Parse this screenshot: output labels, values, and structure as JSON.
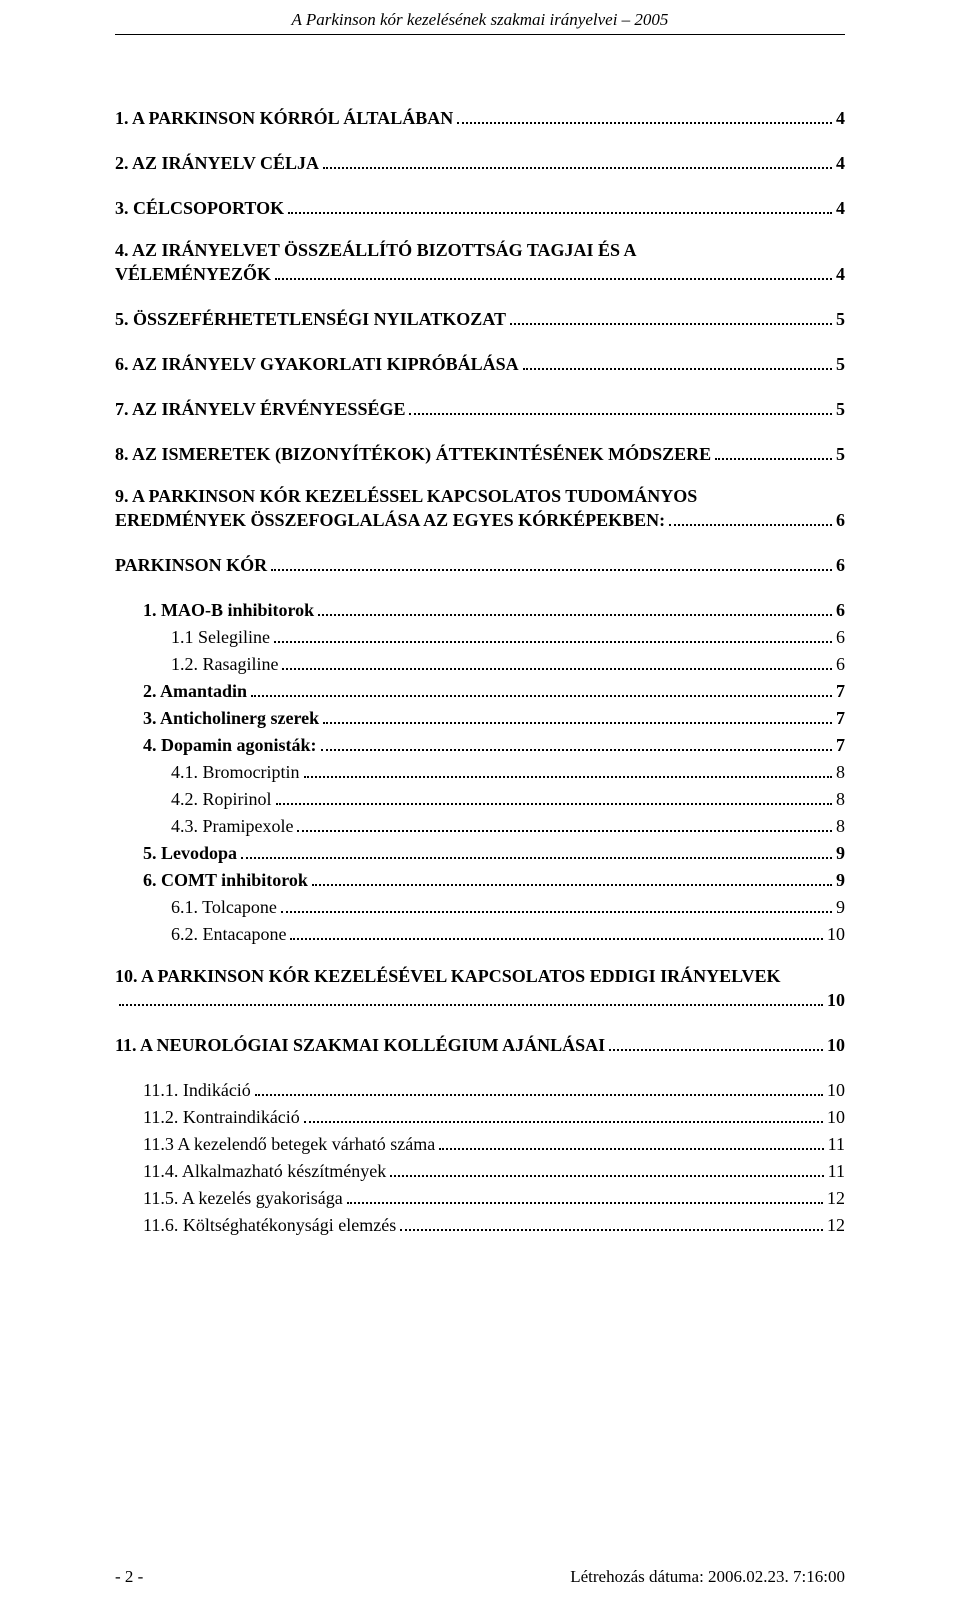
{
  "header": {
    "title": "A Parkinson kór  kezelésének szakmai irányelvei – 2005"
  },
  "toc": [
    {
      "type": "entry",
      "bold": true,
      "indent": 0,
      "label": "1. A PARKINSON KÓRRÓL ÁLTALÁBAN",
      "page": "4"
    },
    {
      "type": "spacer"
    },
    {
      "type": "entry",
      "bold": true,
      "indent": 0,
      "label": "2. AZ IRÁNYELV CÉLJA",
      "page": "4"
    },
    {
      "type": "spacer"
    },
    {
      "type": "entry",
      "bold": true,
      "indent": 0,
      "label": "3. CÉLCSOPORTOK",
      "page": "4"
    },
    {
      "type": "spacer"
    },
    {
      "type": "multiline",
      "bold": true,
      "indent": 0,
      "first": "4. AZ IRÁNYELVET ÖSSZEÁLLÍTÓ BIZOTTSÁG TAGJAI ÉS A",
      "last": "VÉLEMÉNYEZŐK",
      "page": "4"
    },
    {
      "type": "spacer"
    },
    {
      "type": "entry",
      "bold": true,
      "indent": 0,
      "label": "5. ÖSSZEFÉRHETETLENSÉGI NYILATKOZAT",
      "page": "5"
    },
    {
      "type": "spacer"
    },
    {
      "type": "entry",
      "bold": true,
      "indent": 0,
      "label": "6. AZ IRÁNYELV GYAKORLATI KIPRÓBÁLÁSA",
      "page": "5"
    },
    {
      "type": "spacer"
    },
    {
      "type": "entry",
      "bold": true,
      "indent": 0,
      "label": "7. AZ IRÁNYELV ÉRVÉNYESSÉGE",
      "page": "5"
    },
    {
      "type": "spacer"
    },
    {
      "type": "entry",
      "bold": true,
      "indent": 0,
      "label": "8. AZ ISMERETEK (BIZONYÍTÉKOK) ÁTTEKINTÉSÉNEK MÓDSZERE",
      "page": "5"
    },
    {
      "type": "spacer"
    },
    {
      "type": "multiline",
      "bold": true,
      "indent": 0,
      "first": "9. A PARKINSON KÓR KEZELÉSSEL KAPCSOLATOS TUDOMÁNYOS",
      "last": "EREDMÉNYEK ÖSSZEFOGLALÁSA AZ EGYES KÓRKÉPEKBEN:",
      "page": "6"
    },
    {
      "type": "spacer"
    },
    {
      "type": "entry",
      "bold": true,
      "indent": 0,
      "label": "PARKINSON KÓR",
      "page": "6"
    },
    {
      "type": "spacer"
    },
    {
      "type": "entry",
      "bold": true,
      "indent": 1,
      "label": "1. MAO-B inhibitorok",
      "page": "6"
    },
    {
      "type": "entry",
      "bold": false,
      "indent": 2,
      "label": "1.1 Selegiline",
      "page": "6"
    },
    {
      "type": "entry",
      "bold": false,
      "indent": 2,
      "label": "1.2. Rasagiline",
      "page": "6"
    },
    {
      "type": "entry",
      "bold": true,
      "indent": 1,
      "label": "2. Amantadin",
      "page": "7"
    },
    {
      "type": "entry",
      "bold": true,
      "indent": 1,
      "label": "3. Anticholinerg szerek",
      "page": "7"
    },
    {
      "type": "entry",
      "bold": true,
      "indent": 1,
      "label": "4. Dopamin agonisták:",
      "page": "7"
    },
    {
      "type": "entry",
      "bold": false,
      "indent": 2,
      "label": "4.1. Bromocriptin",
      "page": "8"
    },
    {
      "type": "entry",
      "bold": false,
      "indent": 2,
      "label": "4.2. Ropirinol",
      "page": "8"
    },
    {
      "type": "entry",
      "bold": false,
      "indent": 2,
      "label": "4.3. Pramipexole",
      "page": "8"
    },
    {
      "type": "entry",
      "bold": true,
      "indent": 1,
      "label": "5. Levodopa",
      "page": "9"
    },
    {
      "type": "entry",
      "bold": true,
      "indent": 1,
      "label": "6. COMT inhibitorok",
      "page": "9"
    },
    {
      "type": "entry",
      "bold": false,
      "indent": 2,
      "label": "6.1. Tolcapone",
      "page": "9"
    },
    {
      "type": "entry",
      "bold": false,
      "indent": 2,
      "label": "6.2. Entacapone",
      "page": "10"
    },
    {
      "type": "spacer"
    },
    {
      "type": "multiline",
      "bold": true,
      "indent": 0,
      "first": "10. A PARKINSON KÓR KEZELÉSÉVEL KAPCSOLATOS EDDIGI IRÁNYELVEK",
      "last": "",
      "page": "10"
    },
    {
      "type": "spacer"
    },
    {
      "type": "entry",
      "bold": true,
      "indent": 0,
      "label": "11. A NEUROLÓGIAI SZAKMAI KOLLÉGIUM AJÁNLÁSAI",
      "page": "10"
    },
    {
      "type": "spacer"
    },
    {
      "type": "entry",
      "bold": false,
      "indent": 1,
      "label": "11.1. Indikáció",
      "page": "10"
    },
    {
      "type": "entry",
      "bold": false,
      "indent": 1,
      "label": "11.2. Kontraindikáció",
      "page": "10"
    },
    {
      "type": "entry",
      "bold": false,
      "indent": 1,
      "label": "11.3 A kezelendő betegek várható száma",
      "page": "11"
    },
    {
      "type": "entry",
      "bold": false,
      "indent": 1,
      "label": "11.4. Alkalmazható készítmények",
      "page": "11"
    },
    {
      "type": "entry",
      "bold": false,
      "indent": 1,
      "label": "11.5. A kezelés gyakorisága",
      "page": "12"
    },
    {
      "type": "entry",
      "bold": false,
      "indent": 1,
      "label": "11.6. Költséghatékonysági elemzés",
      "page": "12"
    }
  ],
  "footer": {
    "page_number": "- 2 -",
    "timestamp": "Létrehozás dátuma: 2006.02.23. 7:16:00"
  }
}
